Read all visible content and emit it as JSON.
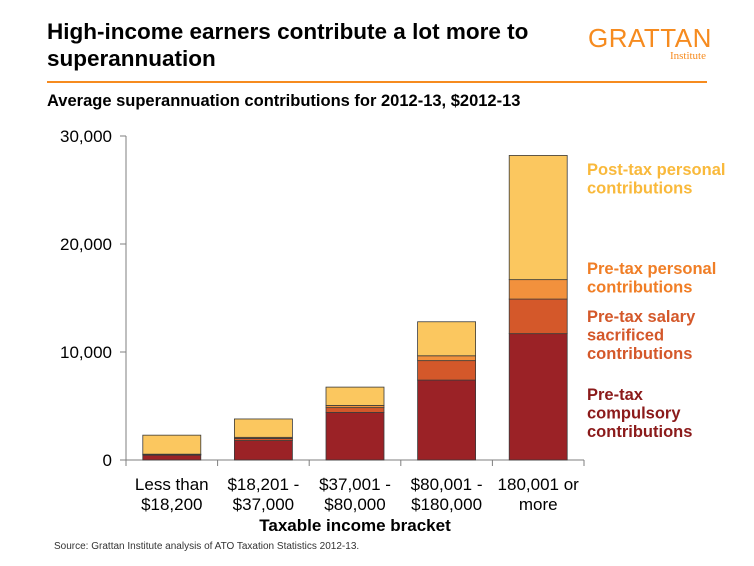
{
  "header": {
    "title": "High-income earners contribute a lot more to superannuation",
    "logo_main": "GRATTAN",
    "logo_sub": "Institute",
    "subtitle": "Average superannuation contributions for 2012-13, $2012-13"
  },
  "footer": {
    "source": "Source: Grattan Institute analysis of ATO Taxation Statistics 2012-13."
  },
  "chart_data": {
    "type": "bar",
    "stacked": true,
    "xlabel": "Taxable income bracket",
    "ylabel": "",
    "ylim": [
      0,
      30000
    ],
    "yticks": [
      0,
      10000,
      20000,
      30000
    ],
    "ytick_labels": [
      "0",
      "10,000",
      "20,000",
      "30,000"
    ],
    "categories": [
      [
        "Less than",
        "$18,200"
      ],
      [
        "$18,201 -",
        "$37,000"
      ],
      [
        "$37,001 -",
        "$80,000"
      ],
      [
        "$80,001 -",
        "$180,000"
      ],
      [
        "180,001 or",
        "more"
      ]
    ],
    "series": [
      {
        "name": "Pre-tax compulsory contributions",
        "legend_lines": [
          "Pre-tax",
          "compulsory",
          "contributions"
        ],
        "color": "#9b2226",
        "text_color": "#8b1a1a",
        "values": [
          450,
          1800,
          4400,
          7400,
          11700
        ]
      },
      {
        "name": "Pre-tax salary sacrificed contributions",
        "legend_lines": [
          "Pre-tax salary",
          "sacrificed",
          "contributions"
        ],
        "color": "#d4582a",
        "text_color": "#d4582a",
        "values": [
          60,
          200,
          450,
          1800,
          3200
        ]
      },
      {
        "name": "Pre-tax personal contributions",
        "legend_lines": [
          "Pre-tax personal",
          "contributions"
        ],
        "color": "#f2913d",
        "text_color": "#f07e26",
        "values": [
          30,
          100,
          200,
          450,
          1800
        ]
      },
      {
        "name": "Post-tax personal contributions",
        "legend_lines": [
          "Post-tax personal",
          "contributions"
        ],
        "color": "#fbc75f",
        "text_color": "#f9b93b",
        "values": [
          1760,
          1700,
          1700,
          3150,
          11500
        ]
      }
    ],
    "grid": false,
    "legend_position": "right"
  }
}
